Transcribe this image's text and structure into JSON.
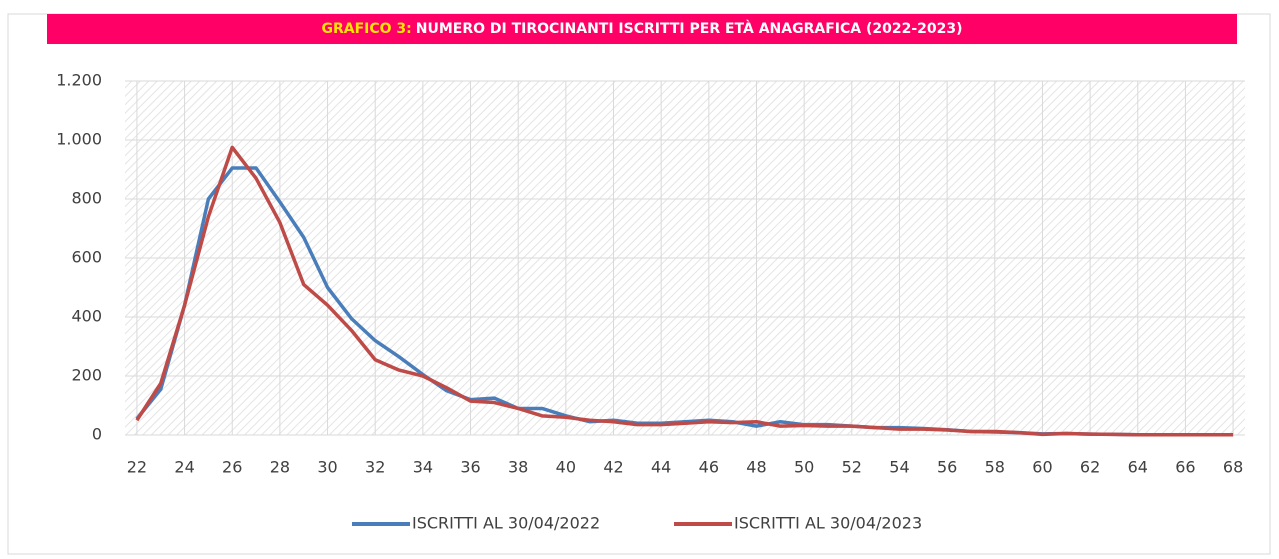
{
  "chart_data": {
    "type": "line",
    "title_label": "GRAFICO 3:",
    "title": "NUMERO DI TIROCINANTI ISCRITTI PER ETÀ ANAGRAFICA (2022-2023)",
    "x": [
      22,
      23,
      24,
      25,
      26,
      27,
      28,
      29,
      30,
      31,
      32,
      33,
      34,
      35,
      36,
      37,
      38,
      39,
      40,
      41,
      42,
      43,
      44,
      45,
      46,
      47,
      48,
      49,
      50,
      51,
      52,
      53,
      54,
      55,
      56,
      57,
      58,
      59,
      60,
      61,
      62,
      63,
      64,
      65,
      66,
      67,
      68
    ],
    "xlim": [
      21.5,
      68.5
    ],
    "xticks": [
      22,
      24,
      26,
      28,
      30,
      32,
      34,
      36,
      38,
      40,
      42,
      44,
      46,
      48,
      50,
      52,
      54,
      56,
      58,
      60,
      62,
      64,
      66,
      68
    ],
    "ylim": [
      0,
      1200
    ],
    "yticks": [
      0,
      200,
      400,
      600,
      800,
      {
        "value": 1000,
        "label": "1.000"
      },
      {
        "value": 1200,
        "label": "1.200"
      }
    ],
    "grid": true,
    "legend": "bottom",
    "series": [
      {
        "name": "ISCRITTI AL 30/04/2022",
        "color": "#4a7ebb",
        "values": [
          55,
          155,
          440,
          800,
          905,
          905,
          790,
          670,
          500,
          395,
          320,
          265,
          205,
          150,
          120,
          125,
          90,
          90,
          65,
          45,
          50,
          40,
          40,
          45,
          50,
          45,
          30,
          45,
          35,
          35,
          30,
          25,
          25,
          22,
          18,
          12,
          10,
          8,
          4,
          5,
          3,
          2,
          1,
          1,
          1,
          1,
          1
        ]
      },
      {
        "name": "ISCRITTI AL 30/04/2023",
        "color": "#be4b48",
        "values": [
          50,
          175,
          440,
          740,
          975,
          870,
          720,
          510,
          440,
          355,
          255,
          220,
          200,
          160,
          115,
          110,
          90,
          65,
          60,
          50,
          45,
          35,
          35,
          40,
          45,
          42,
          45,
          30,
          32,
          30,
          30,
          25,
          20,
          20,
          17,
          12,
          12,
          8,
          2,
          5,
          3,
          2,
          1,
          1,
          1,
          1,
          1
        ]
      }
    ]
  }
}
